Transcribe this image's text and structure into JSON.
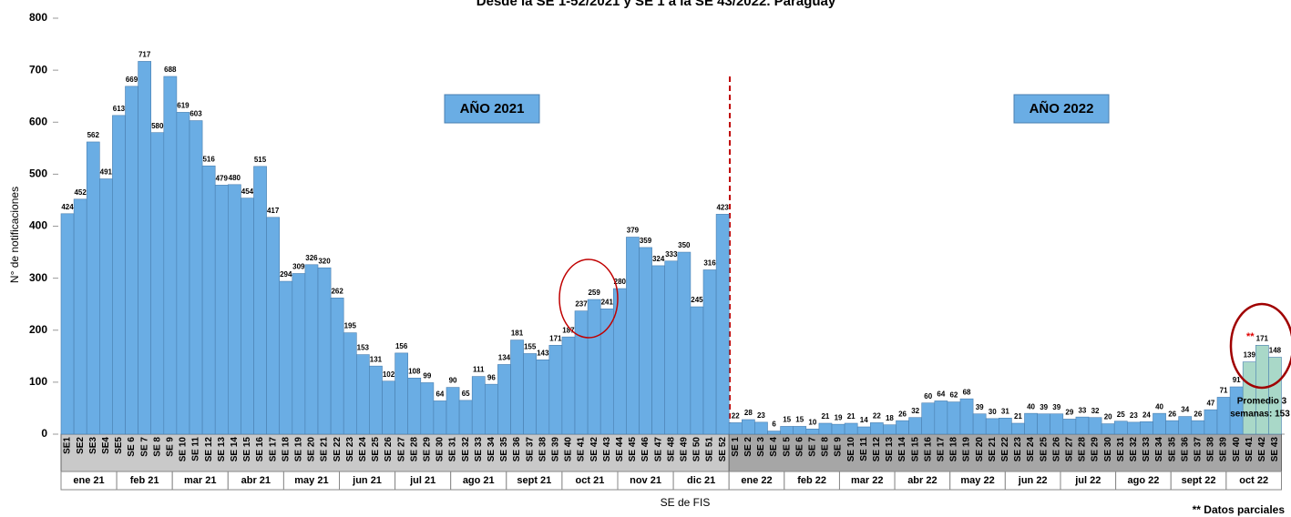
{
  "chart_data": {
    "type": "bar",
    "title": "Desde la SE 1-52/2021 y SE 1 a la SE 43/2022. Paraguay",
    "y_label": "N° de notificaciones",
    "x_label": "SE de FIS",
    "ylim": [
      0,
      800
    ],
    "yticks": [
      0,
      100,
      200,
      300,
      400,
      500,
      600,
      700,
      800
    ],
    "series": [
      {
        "name": "AÑO 2021",
        "color": "#6aade4",
        "categories": [
          "SE1",
          "SE2",
          "SE3",
          "SE4",
          "SE5",
          "SE 6",
          "SE 7",
          "SE 8",
          "SE 9",
          "SE 10",
          "SE 11",
          "SE 12",
          "SE 13",
          "SE 14",
          "SE 15",
          "SE 16",
          "SE 17",
          "SE 18",
          "SE 19",
          "SE 20",
          "SE 21",
          "SE 22",
          "SE 23",
          "SE 24",
          "SE 25",
          "SE 26",
          "SE 27",
          "SE 28",
          "SE 29",
          "SE 30",
          "SE 31",
          "SE 32",
          "SE 33",
          "SE 34",
          "SE 35",
          "SE 36",
          "SE 37",
          "SE 38",
          "SE 39",
          "SE 40",
          "SE 41",
          "SE 42",
          "SE 43",
          "SE 44",
          "SE 45",
          "SE 46",
          "SE 47",
          "SE 48",
          "SE 49",
          "SE 50",
          "SE 51",
          "SE 52"
        ],
        "values": [
          424,
          452,
          562,
          491,
          613,
          669,
          717,
          580,
          688,
          619,
          603,
          516,
          479,
          480,
          454,
          515,
          417,
          294,
          309,
          326,
          320,
          262,
          195,
          153,
          131,
          102,
          156,
          108,
          99,
          64,
          90,
          65,
          111,
          96,
          134,
          181,
          155,
          143,
          171,
          187,
          237,
          259,
          241,
          280,
          379,
          359,
          324,
          333,
          350,
          245,
          316,
          423
        ],
        "months": [
          "ene 21",
          "feb 21",
          "mar 21",
          "abr 21",
          "may 21",
          "jun 21",
          "jul 21",
          "ago 21",
          "sept 21",
          "oct 21",
          "nov 21",
          "dic 21"
        ]
      },
      {
        "name": "AÑO 2022",
        "color": "#6aade4",
        "categories": [
          "SE 1",
          "SE 2",
          "SE 3",
          "SE 4",
          "SE 5",
          "SE 6",
          "SE 7",
          "SE 8",
          "SE 9",
          "SE 10",
          "SE 11",
          "SE 12",
          "SE 13",
          "SE 14",
          "SE 15",
          "SE 16",
          "SE 17",
          "SE 18",
          "SE 19",
          "SE 20",
          "SE 21",
          "SE 22",
          "SE 23",
          "SE 24",
          "SE 25",
          "SE 26",
          "SE 27",
          "SE 28",
          "SE 29",
          "SE 30",
          "SE 31",
          "SE 32",
          "SE 33",
          "SE 34",
          "SE 35",
          "SE 36",
          "SE 37",
          "SE 38",
          "SE 39",
          "SE 40",
          "SE 41",
          "SE 42",
          "SE 43"
        ],
        "values": [
          22,
          28,
          23,
          6,
          15,
          15,
          10,
          21,
          19,
          21,
          14,
          22,
          18,
          26,
          32,
          60,
          64,
          62,
          68,
          39,
          30,
          31,
          21,
          40,
          39,
          39,
          29,
          33,
          32,
          20,
          25,
          23,
          24,
          40,
          26,
          34,
          26,
          47,
          71,
          91,
          139,
          171,
          148
        ],
        "colors": [
          "#6aade4",
          "#6aade4",
          "#6aade4",
          "#6aade4",
          "#6aade4",
          "#6aade4",
          "#6aade4",
          "#6aade4",
          "#6aade4",
          "#6aade4",
          "#6aade4",
          "#6aade4",
          "#6aade4",
          "#6aade4",
          "#6aade4",
          "#6aade4",
          "#6aade4",
          "#6aade4",
          "#6aade4",
          "#6aade4",
          "#6aade4",
          "#6aade4",
          "#6aade4",
          "#6aade4",
          "#6aade4",
          "#6aade4",
          "#6aade4",
          "#6aade4",
          "#6aade4",
          "#6aade4",
          "#6aade4",
          "#6aade4",
          "#6aade4",
          "#6aade4",
          "#6aade4",
          "#6aade4",
          "#6aade4",
          "#6aade4",
          "#6aade4",
          "#6aade4",
          "#a9d8c8",
          "#a9d8c8",
          "#a9d8c8"
        ],
        "months": [
          "ene 22",
          "feb 22",
          "mar 22",
          "abr 22",
          "may 22",
          "jun 22",
          "jul 22",
          "ago 22",
          "sept 22",
          "oct 22"
        ]
      }
    ],
    "annotations": [
      "Promedio 3",
      "semanas: 153",
      "**",
      "** Datos parciales"
    ]
  }
}
